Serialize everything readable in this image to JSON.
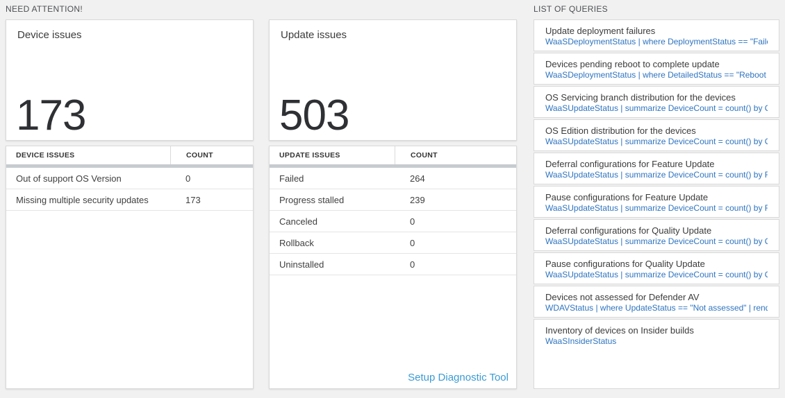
{
  "colors": {
    "page_background": "#f1f1f1",
    "query_blue": "#2e74c0",
    "link_blue": "#3a9bd5",
    "divider_gray": "#c7cbcf"
  },
  "need_attention": {
    "header": "NEED ATTENTION!",
    "device_card": {
      "title": "Device issues",
      "count": "173"
    },
    "device_table": {
      "columns": [
        "DEVICE ISSUES",
        "COUNT"
      ],
      "rows": [
        {
          "issue": "Out of support OS Version",
          "count": "0"
        },
        {
          "issue": "Missing multiple security updates",
          "count": "173"
        }
      ]
    },
    "update_card": {
      "title": "Update issues",
      "count": "503"
    },
    "update_table": {
      "columns": [
        "UPDATE ISSUES",
        "COUNT"
      ],
      "rows": [
        {
          "issue": "Failed",
          "count": "264"
        },
        {
          "issue": "Progress stalled",
          "count": "239"
        },
        {
          "issue": "Canceled",
          "count": "0"
        },
        {
          "issue": "Rollback",
          "count": "0"
        },
        {
          "issue": "Uninstalled",
          "count": "0"
        }
      ]
    },
    "setup_link": "Setup Diagnostic Tool"
  },
  "queries_panel": {
    "header": "LIST OF QUERIES",
    "items": [
      {
        "title": "Update deployment failures",
        "query": "WaaSDeploymentStatus | where DeploymentStatus == \"Failed\" |..."
      },
      {
        "title": "Devices pending reboot to complete update",
        "query": "WaaSDeploymentStatus | where DetailedStatus == \"Reboot pend..."
      },
      {
        "title": "OS Servicing branch distribution for the devices",
        "query": "WaaSUpdateStatus | summarize DeviceCount = count() by OSSer..."
      },
      {
        "title": "OS Edition distribution for the devices",
        "query": "WaaSUpdateStatus | summarize DeviceCount = count() by OSEdit..."
      },
      {
        "title": "Deferral configurations for Feature Update",
        "query": "WaaSUpdateStatus | summarize DeviceCount = count() by Featur..."
      },
      {
        "title": "Pause configurations for Feature Update",
        "query": "WaaSUpdateStatus | summarize DeviceCount = count() by Featur..."
      },
      {
        "title": "Deferral configurations for Quality Update",
        "query": "WaaSUpdateStatus | summarize DeviceCount = count() by Qualit..."
      },
      {
        "title": "Pause configurations for Quality Update",
        "query": "WaaSUpdateStatus | summarize DeviceCount = count() by Qualit..."
      },
      {
        "title": "Devices not assessed for Defender AV",
        "query": "WDAVStatus | where UpdateStatus == \"Not assessed\" | render ta..."
      },
      {
        "title": "Inventory of devices on Insider builds",
        "query": "WaaSInsiderStatus"
      }
    ]
  }
}
